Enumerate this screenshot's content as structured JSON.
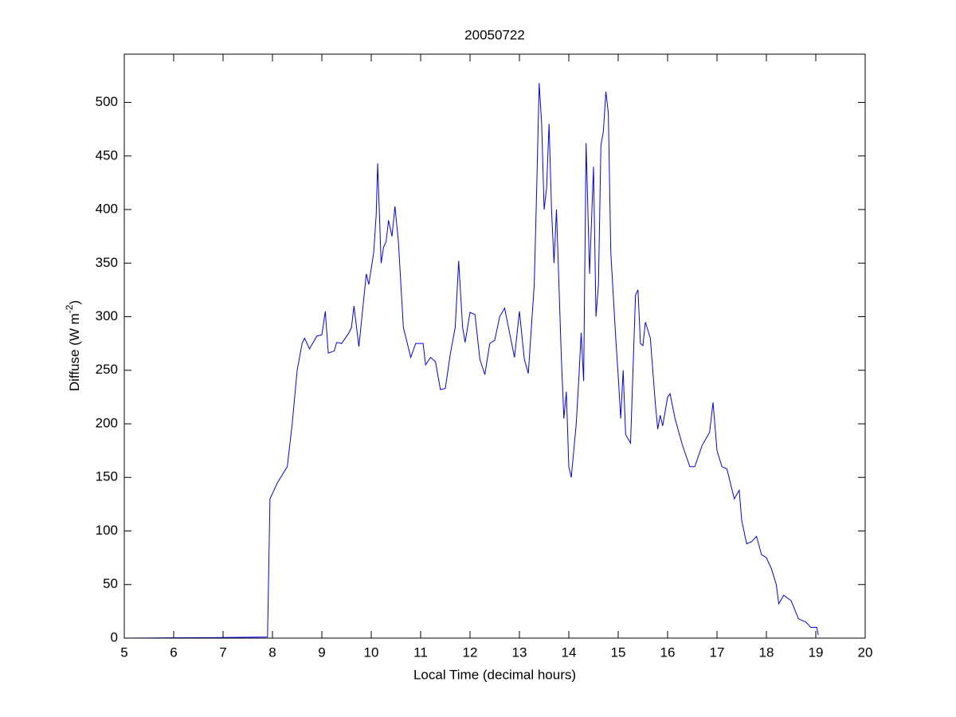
{
  "chart_data": {
    "type": "line",
    "title": "20050722",
    "x_label": "Local Time (decimal hours)",
    "y_label": "Diffuse (W m",
    "y_label_sup": "-2",
    "y_label_end": ")",
    "xlim": [
      5,
      20
    ],
    "ylim": [
      0,
      545
    ],
    "xticks": [
      5,
      6,
      7,
      8,
      9,
      10,
      11,
      12,
      13,
      14,
      15,
      16,
      17,
      18,
      19,
      20
    ],
    "yticks": [
      0,
      50,
      100,
      150,
      200,
      250,
      300,
      350,
      400,
      450,
      500
    ],
    "x": [
      5.0,
      6.8,
      7.9,
      7.95,
      8.0,
      8.1,
      8.3,
      8.4,
      8.5,
      8.6,
      8.65,
      8.75,
      8.9,
      9.0,
      9.07,
      9.13,
      9.25,
      9.3,
      9.4,
      9.55,
      9.6,
      9.65,
      9.75,
      9.9,
      9.95,
      10.05,
      10.1,
      10.13,
      10.2,
      10.25,
      10.3,
      10.35,
      10.42,
      10.48,
      10.55,
      10.65,
      10.8,
      10.9,
      11.05,
      11.1,
      11.2,
      11.3,
      11.4,
      11.5,
      11.6,
      11.7,
      11.77,
      11.85,
      11.9,
      12.0,
      12.1,
      12.2,
      12.3,
      12.4,
      12.5,
      12.6,
      12.7,
      12.8,
      12.9,
      13.0,
      13.1,
      13.18,
      13.3,
      13.35,
      13.4,
      13.45,
      13.5,
      13.55,
      13.6,
      13.65,
      13.7,
      13.75,
      13.85,
      13.9,
      13.95,
      14.0,
      14.05,
      14.15,
      14.2,
      14.25,
      14.3,
      14.35,
      14.42,
      14.5,
      14.55,
      14.6,
      14.65,
      14.7,
      14.75,
      14.8,
      14.85,
      14.95,
      15.0,
      15.05,
      15.1,
      15.15,
      15.25,
      15.35,
      15.4,
      15.45,
      15.5,
      15.55,
      15.65,
      15.75,
      15.8,
      15.85,
      15.9,
      16.0,
      16.05,
      16.15,
      16.3,
      16.45,
      16.55,
      16.7,
      16.85,
      16.92,
      17.0,
      17.1,
      17.2,
      17.35,
      17.45,
      17.5,
      17.6,
      17.7,
      17.8,
      17.9,
      18.0,
      18.1,
      18.2,
      18.25,
      18.35,
      18.5,
      18.65,
      18.8,
      18.9,
      19.02,
      19.05
    ],
    "series": [
      {
        "color": "#0000ff",
        "values": [
          0,
          0.5,
          1,
          130,
          135,
          145,
          160,
          200,
          250,
          275,
          280,
          270,
          282,
          283,
          305,
          266,
          268,
          276,
          275,
          285,
          290,
          310,
          272,
          340,
          330,
          360,
          395,
          443,
          350,
          365,
          370,
          390,
          375,
          403,
          370,
          290,
          262,
          275,
          275,
          255,
          262,
          258,
          232,
          233,
          265,
          290,
          352,
          290,
          276,
          304,
          302,
          260,
          246,
          275,
          278,
          300,
          308,
          285,
          262,
          305,
          260,
          247,
          330,
          420,
          518,
          480,
          400,
          420,
          480,
          400,
          350,
          400,
          260,
          205,
          230,
          160,
          150,
          200,
          240,
          285,
          240,
          462,
          340,
          440,
          300,
          330,
          460,
          473,
          510,
          490,
          360,
          280,
          245,
          205,
          250,
          190,
          182,
          320,
          325,
          275,
          273,
          295,
          280,
          220,
          195,
          208,
          198,
          225,
          228,
          205,
          180,
          160,
          160,
          180,
          192,
          220,
          175,
          160,
          158,
          130,
          138,
          110,
          88,
          90,
          95,
          78,
          75,
          65,
          50,
          32,
          40,
          35,
          18,
          15,
          10,
          10,
          3
        ]
      }
    ]
  }
}
